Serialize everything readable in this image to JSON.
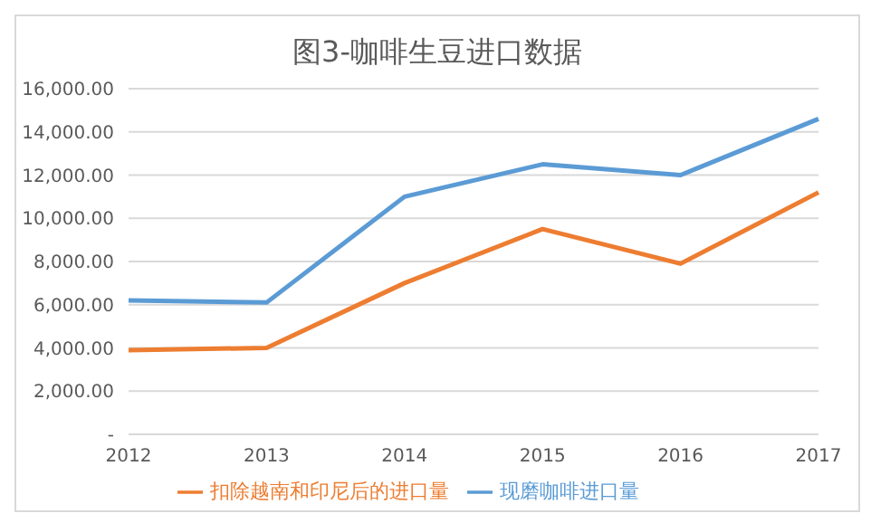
{
  "chart_data": {
    "type": "line",
    "title": "图3-咖啡生豆进口数据",
    "categories": [
      "2012",
      "2013",
      "2014",
      "2015",
      "2016",
      "2017"
    ],
    "series": [
      {
        "name": "现磨咖啡进口量",
        "color": "#5b9bd5",
        "values": [
          6200,
          6100,
          11000,
          12500,
          12000,
          14600
        ]
      },
      {
        "name": "扣除越南和印尼后的进口量",
        "color": "#ed7d31",
        "values": [
          3900,
          4000,
          7000,
          9500,
          7900,
          11200
        ]
      }
    ],
    "ylim": [
      0,
      16000
    ],
    "yticks": [
      {
        "value": 0,
        "label": "-"
      },
      {
        "value": 2000,
        "label": "2,000.00"
      },
      {
        "value": 4000,
        "label": "4,000.00"
      },
      {
        "value": 6000,
        "label": "6,000.00"
      },
      {
        "value": 8000,
        "label": "8,000.00"
      },
      {
        "value": 10000,
        "label": "10,000.00"
      },
      {
        "value": 12000,
        "label": "12,000.00"
      },
      {
        "value": 14000,
        "label": "14,000.00"
      },
      {
        "value": 16000,
        "label": "16,000.00"
      }
    ],
    "grid": "y",
    "legend": "bottom",
    "marker": "none",
    "line_style": "solid"
  }
}
